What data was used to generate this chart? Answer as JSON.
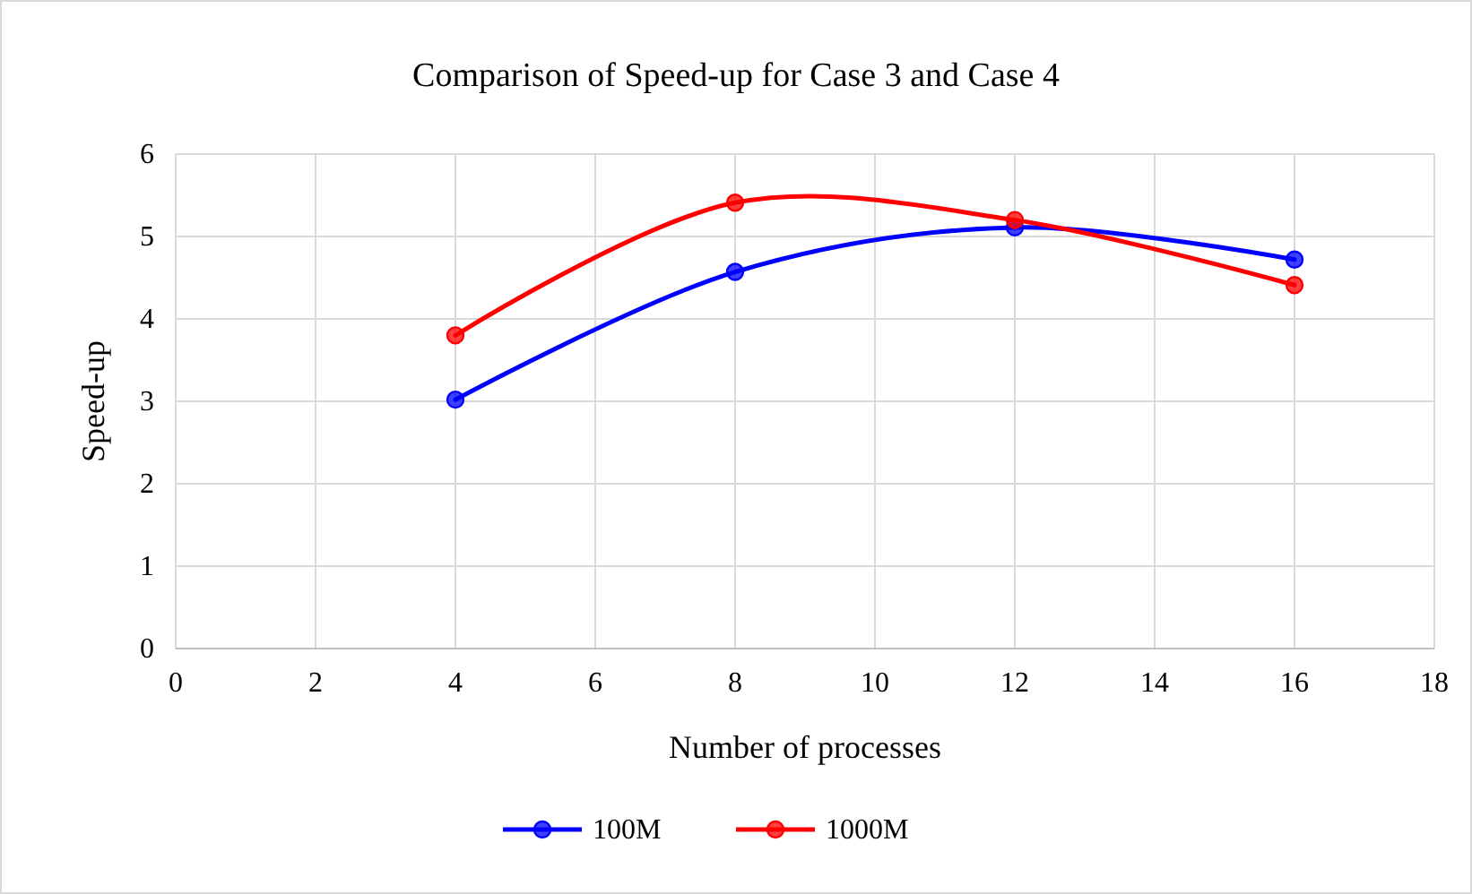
{
  "chart_data": {
    "type": "line",
    "title": "Comparison of Speed-up for Case 3 and Case 4",
    "xlabel": "Number of processes",
    "ylabel": "Speed-up",
    "x": [
      4,
      8,
      12,
      16
    ],
    "series": [
      {
        "name": "100M",
        "color": "#0000ff",
        "values": [
          3.02,
          4.57,
          5.11,
          4.72
        ]
      },
      {
        "name": "1000M",
        "color": "#ff0000",
        "values": [
          3.8,
          5.41,
          5.2,
          4.41
        ]
      }
    ],
    "xlim": [
      0,
      18
    ],
    "xticks": [
      0,
      2,
      4,
      6,
      8,
      10,
      12,
      14,
      16,
      18
    ],
    "ylim": [
      0,
      6
    ],
    "yticks": [
      0,
      1,
      2,
      3,
      4,
      5,
      6
    ],
    "grid": true,
    "legend": "bottom",
    "marker": "circle",
    "line_style": "solid"
  }
}
